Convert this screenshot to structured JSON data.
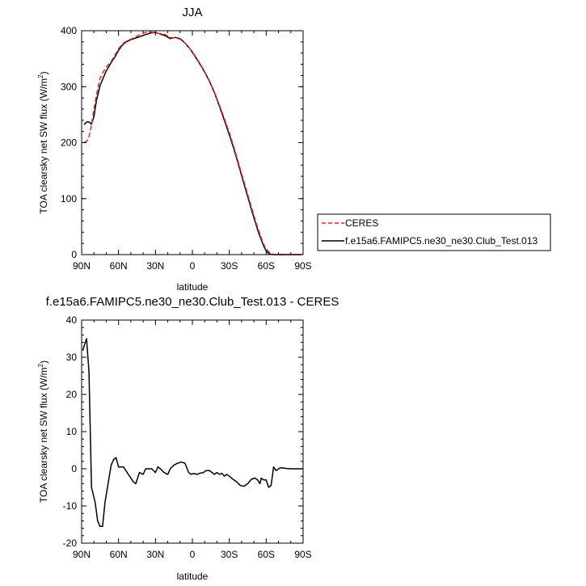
{
  "chart_data": [
    {
      "type": "line",
      "title": "JJA",
      "xlabel": "latitude",
      "ylabel": "TOA clearsky net SW flux (W/m",
      "ylabel_sup": "2",
      "ylabel_close": ")",
      "xlim": [
        -90,
        90
      ],
      "ylim": [
        0,
        400
      ],
      "xticks": [
        {
          "value": -90,
          "label": "90N"
        },
        {
          "value": -60,
          "label": "60N"
        },
        {
          "value": -30,
          "label": "30N"
        },
        {
          "value": 0,
          "label": "0"
        },
        {
          "value": 30,
          "label": "30S"
        },
        {
          "value": 60,
          "label": "60S"
        },
        {
          "value": 90,
          "label": "90S"
        }
      ],
      "yticks": [
        0,
        100,
        200,
        300,
        400
      ],
      "legend_position": "right",
      "series": [
        {
          "name": "CERES",
          "color": "#e8262a",
          "dash": "dashed",
          "x": [
            -88,
            -86,
            -84,
            -82,
            -80,
            -78,
            -75,
            -72,
            -70,
            -66,
            -63,
            -60,
            -57,
            -54,
            -50,
            -46,
            -42,
            -38,
            -34,
            -30,
            -26,
            -22,
            -18,
            -14,
            -10,
            -6,
            -2,
            2,
            6,
            10,
            14,
            18,
            22,
            26,
            30,
            34,
            38,
            42,
            46,
            50,
            54,
            58,
            60,
            62,
            64,
            66,
            68,
            70,
            72,
            74,
            78,
            82,
            86,
            89
          ],
          "y": [
            201,
            202,
            210,
            232,
            260,
            285,
            315,
            328,
            335,
            345,
            356,
            368,
            376,
            381,
            385,
            389,
            394,
            397,
            398,
            396,
            395,
            393,
            388,
            387,
            385,
            378,
            368,
            356,
            342,
            327,
            310,
            290,
            267,
            243,
            218,
            190,
            160,
            130,
            100,
            70,
            42,
            18,
            10,
            5,
            2,
            0.5,
            0,
            0,
            0,
            0,
            0,
            0,
            0,
            0
          ]
        },
        {
          "name": "f.e15a6.FAMIPC5.ne30_ne30.Club_Test.013",
          "color": "#000000",
          "dash": "solid",
          "x": [
            -88,
            -86,
            -84,
            -82,
            -80,
            -78,
            -75,
            -72,
            -70,
            -66,
            -63,
            -60,
            -57,
            -54,
            -50,
            -46,
            -42,
            -38,
            -34,
            -30,
            -26,
            -22,
            -18,
            -14,
            -10,
            -6,
            -2,
            2,
            6,
            10,
            14,
            18,
            22,
            26,
            30,
            34,
            38,
            42,
            46,
            50,
            54,
            58,
            60,
            62,
            64,
            66,
            68,
            70,
            72,
            74,
            78,
            82,
            86,
            89
          ],
          "y": [
            232,
            237,
            237,
            233,
            246,
            275,
            302,
            318,
            328,
            343,
            353,
            365,
            374,
            380,
            384,
            387,
            390,
            393,
            396,
            397,
            394,
            391,
            386,
            388,
            386,
            378,
            368,
            355,
            341,
            326,
            309,
            289,
            265,
            240,
            214,
            187,
            157,
            126,
            96,
            66,
            38,
            15,
            7,
            2,
            0.5,
            0,
            0,
            0,
            0,
            0,
            0,
            0,
            0,
            0
          ]
        }
      ]
    },
    {
      "type": "line",
      "title": "f.e15a6.FAMIPC5.ne30_ne30.Club_Test.013 - CERES",
      "xlabel": "latitude",
      "ylabel": "TOA clearsky net SW flux (W/m",
      "ylabel_sup": "2",
      "ylabel_close": ")",
      "xlim": [
        -90,
        90
      ],
      "ylim": [
        -20,
        40
      ],
      "xticks": [
        {
          "value": -90,
          "label": "90N"
        },
        {
          "value": -60,
          "label": "60N"
        },
        {
          "value": -30,
          "label": "30N"
        },
        {
          "value": 0,
          "label": "0"
        },
        {
          "value": 30,
          "label": "30S"
        },
        {
          "value": 60,
          "label": "60S"
        },
        {
          "value": 90,
          "label": "90S"
        }
      ],
      "yticks": [
        -20,
        -10,
        0,
        10,
        20,
        30,
        40
      ],
      "series": [
        {
          "color": "#000000",
          "dash": "solid",
          "x": [
            -89,
            -86,
            -84,
            -82,
            -79,
            -77,
            -75,
            -73,
            -71,
            -68,
            -66,
            -64,
            -62,
            -60,
            -58,
            -56,
            -54,
            -52,
            -50,
            -48,
            -46,
            -43,
            -40,
            -38,
            -36,
            -33,
            -30,
            -28,
            -26,
            -23,
            -20,
            -18,
            -15,
            -12,
            -9,
            -6,
            -3,
            -1,
            0,
            2,
            4,
            6,
            9,
            11,
            14,
            16,
            18,
            20,
            22,
            24,
            26,
            28,
            30,
            33,
            36,
            39,
            42,
            45,
            48,
            51,
            53,
            55,
            56,
            58,
            60,
            62,
            64,
            66,
            68,
            70,
            72,
            76,
            80,
            85,
            90
          ],
          "y": [
            32,
            35,
            26,
            -5,
            -9,
            -14,
            -15.5,
            -15.5,
            -9,
            -3,
            1,
            2.5,
            3,
            0.5,
            0.5,
            0.5,
            -0.5,
            -1.5,
            -2.5,
            -3.5,
            -4,
            -1,
            -1.5,
            0,
            0,
            0,
            -1,
            0.5,
            0,
            -1,
            -1.5,
            0,
            1,
            1.5,
            1.8,
            1.5,
            -1,
            -1.5,
            -1.3,
            -1.3,
            -1.5,
            -1.2,
            -1,
            -0.5,
            -0.5,
            -1,
            -1.5,
            -1,
            -1.5,
            -1.2,
            -2,
            -1.5,
            -2,
            -2.8,
            -3.5,
            -4.5,
            -4.7,
            -4,
            -2.8,
            -2.5,
            -3,
            -4,
            -2.5,
            -3,
            -3,
            -5,
            -4.5,
            0.5,
            -0.5,
            0,
            0.3,
            0.1,
            0,
            0,
            0
          ]
        }
      ]
    }
  ]
}
